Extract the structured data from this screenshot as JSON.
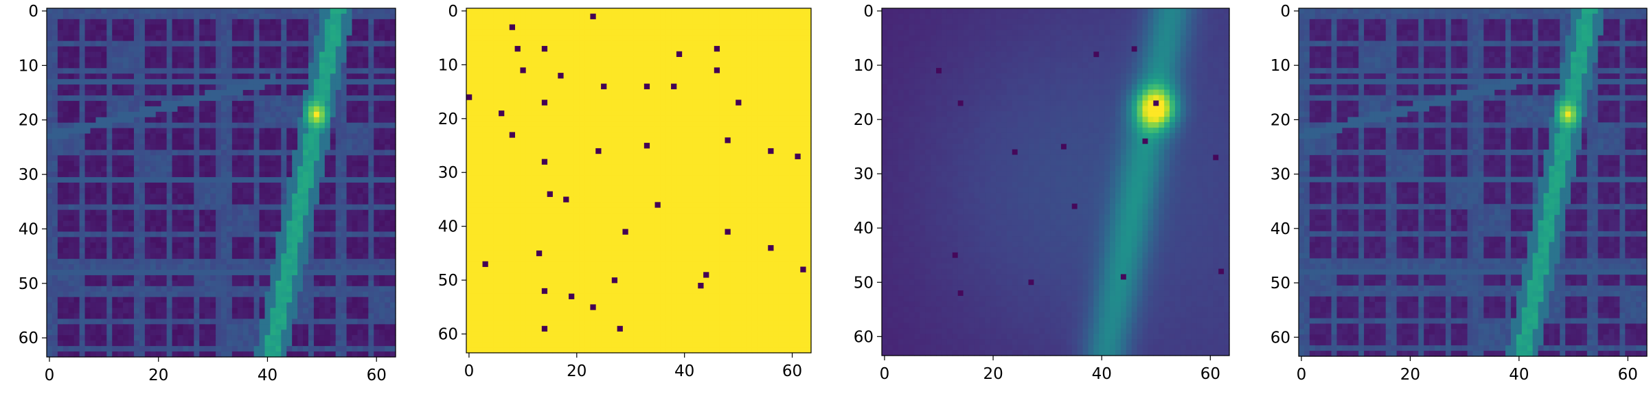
{
  "figure": {
    "background": "#ffffff",
    "colormap": "viridis"
  },
  "chart_data": [
    {
      "type": "heatmap",
      "description_id": "panel-1",
      "grid_size": [
        64,
        64
      ],
      "x_ticks": [
        0,
        20,
        40,
        60
      ],
      "y_ticks": [
        0,
        10,
        20,
        30,
        40,
        50,
        60
      ],
      "x_tick_labels": [
        "0",
        "20",
        "40",
        "60"
      ],
      "y_tick_labels": [
        "0",
        "10",
        "20",
        "30",
        "40",
        "50",
        "60"
      ],
      "xlim": [
        -0.5,
        63.5
      ],
      "ylim": [
        63.5,
        -0.5
      ],
      "content": "urban building map with road heat field",
      "hotspot": {
        "x": 49,
        "y": 19
      }
    },
    {
      "type": "heatmap",
      "description_id": "panel-2",
      "grid_size": [
        64,
        64
      ],
      "x_ticks": [
        0,
        20,
        40,
        60
      ],
      "y_ticks": [
        0,
        10,
        20,
        30,
        40,
        50,
        60
      ],
      "x_tick_labels": [
        "0",
        "20",
        "40",
        "60"
      ],
      "y_tick_labels": [
        "0",
        "10",
        "20",
        "30",
        "40",
        "50",
        "60"
      ],
      "xlim": [
        -0.5,
        63.5
      ],
      "ylim": [
        63.5,
        -0.5
      ],
      "content": "binary mask, sampled points shown as dark cells",
      "points": [
        [
          23,
          1
        ],
        [
          8,
          3
        ],
        [
          9,
          7
        ],
        [
          14,
          7
        ],
        [
          46,
          7
        ],
        [
          39,
          8
        ],
        [
          10,
          11
        ],
        [
          46,
          11
        ],
        [
          17,
          12
        ],
        [
          25,
          14
        ],
        [
          33,
          14
        ],
        [
          38,
          14
        ],
        [
          0,
          16
        ],
        [
          14,
          17
        ],
        [
          50,
          17
        ],
        [
          6,
          19
        ],
        [
          8,
          23
        ],
        [
          48,
          24
        ],
        [
          33,
          25
        ],
        [
          24,
          26
        ],
        [
          56,
          26
        ],
        [
          61,
          27
        ],
        [
          14,
          28
        ],
        [
          15,
          34
        ],
        [
          18,
          35
        ],
        [
          35,
          36
        ],
        [
          29,
          41
        ],
        [
          48,
          41
        ],
        [
          56,
          44
        ],
        [
          13,
          45
        ],
        [
          3,
          47
        ],
        [
          62,
          48
        ],
        [
          44,
          49
        ],
        [
          27,
          50
        ],
        [
          43,
          51
        ],
        [
          14,
          52
        ],
        [
          19,
          53
        ],
        [
          23,
          55
        ],
        [
          14,
          59
        ],
        [
          28,
          59
        ]
      ]
    },
    {
      "type": "heatmap",
      "description_id": "panel-3",
      "grid_size": [
        64,
        64
      ],
      "x_ticks": [
        0,
        20,
        40,
        60
      ],
      "y_ticks": [
        0,
        10,
        20,
        30,
        40,
        50,
        60
      ],
      "x_tick_labels": [
        "0",
        "20",
        "40",
        "60"
      ],
      "y_tick_labels": [
        "0",
        "10",
        "20",
        "30",
        "40",
        "50",
        "60"
      ],
      "xlim": [
        -0.5,
        63.5
      ],
      "ylim": [
        63.5,
        -0.5
      ],
      "content": "smooth predicted field with bright peak",
      "hotspot": {
        "x": 50,
        "y": 18
      }
    },
    {
      "type": "heatmap",
      "description_id": "panel-4",
      "grid_size": [
        64,
        64
      ],
      "x_ticks": [
        0,
        20,
        40,
        60
      ],
      "y_ticks": [
        0,
        10,
        20,
        30,
        40,
        50,
        60
      ],
      "x_tick_labels": [
        "0",
        "20",
        "40",
        "60"
      ],
      "y_tick_labels": [
        "0",
        "10",
        "20",
        "30",
        "40",
        "50",
        "60"
      ],
      "xlim": [
        -0.5,
        63.5
      ],
      "ylim": [
        63.5,
        -0.5
      ],
      "content": "urban building map with road heat field (reconstruction)",
      "hotspot": {
        "x": 49,
        "y": 19
      }
    }
  ]
}
